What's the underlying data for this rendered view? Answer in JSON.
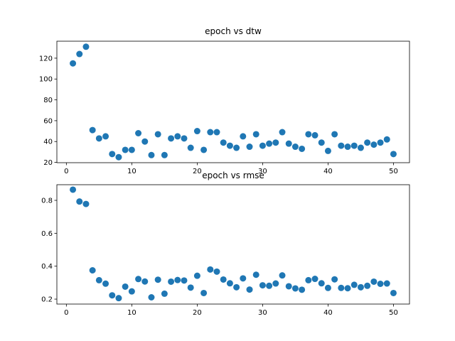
{
  "chart_data": [
    {
      "type": "scatter",
      "title": "epoch vs dtw",
      "xlabel": "",
      "ylabel": "",
      "xlim": [
        -1.45,
        52.45
      ],
      "ylim": [
        19.7,
        136.3
      ],
      "xticks": [
        0,
        10,
        20,
        30,
        40,
        50
      ],
      "yticks": [
        20,
        40,
        60,
        80,
        100,
        120
      ],
      "grid": false,
      "marker_color": "#1f77b4",
      "series": [
        {
          "x": [
            1,
            2,
            3,
            4,
            5,
            6,
            7,
            8,
            9,
            10,
            11,
            12,
            13,
            14,
            15,
            16,
            17,
            18,
            19,
            20,
            21,
            22,
            23,
            24,
            25,
            26,
            27,
            28,
            29,
            30,
            31,
            32,
            33,
            34,
            35,
            36,
            37,
            38,
            39,
            40,
            41,
            42,
            43,
            44,
            45,
            46,
            47,
            48,
            49,
            50
          ],
          "y": [
            115,
            124,
            131,
            51,
            43,
            45,
            28,
            25,
            32,
            32,
            48,
            40,
            27,
            47,
            27,
            43,
            45,
            43,
            34,
            50,
            32,
            49,
            49,
            39,
            36,
            34,
            45,
            35,
            47,
            36,
            38,
            39,
            49,
            38,
            35,
            33,
            47,
            46,
            39,
            31,
            47,
            36,
            35,
            36,
            34,
            39,
            37,
            39,
            42,
            28
          ]
        }
      ]
    },
    {
      "type": "scatter",
      "title": "epoch vs rmse",
      "xlabel": "",
      "ylabel": "",
      "xlim": [
        -1.45,
        52.45
      ],
      "ylim": [
        0.17,
        0.895
      ],
      "xticks": [
        0,
        10,
        20,
        30,
        40,
        50
      ],
      "yticks": [
        0.2,
        0.4,
        0.6,
        0.8
      ],
      "grid": false,
      "marker_color": "#1f77b4",
      "series": [
        {
          "x": [
            1,
            2,
            3,
            4,
            5,
            6,
            7,
            8,
            9,
            10,
            11,
            12,
            13,
            14,
            15,
            16,
            17,
            18,
            19,
            20,
            21,
            22,
            23,
            24,
            25,
            26,
            27,
            28,
            29,
            30,
            31,
            32,
            33,
            34,
            35,
            36,
            37,
            38,
            39,
            40,
            41,
            42,
            43,
            44,
            45,
            46,
            47,
            48,
            49,
            50
          ],
          "y": [
            0.865,
            0.793,
            0.778,
            0.375,
            0.315,
            0.294,
            0.223,
            0.206,
            0.276,
            0.247,
            0.322,
            0.307,
            0.211,
            0.318,
            0.233,
            0.306,
            0.316,
            0.313,
            0.27,
            0.342,
            0.237,
            0.38,
            0.367,
            0.319,
            0.296,
            0.272,
            0.326,
            0.258,
            0.348,
            0.284,
            0.281,
            0.295,
            0.344,
            0.278,
            0.265,
            0.257,
            0.315,
            0.323,
            0.296,
            0.268,
            0.32,
            0.268,
            0.266,
            0.287,
            0.272,
            0.281,
            0.306,
            0.293,
            0.295,
            0.237
          ]
        }
      ]
    }
  ]
}
